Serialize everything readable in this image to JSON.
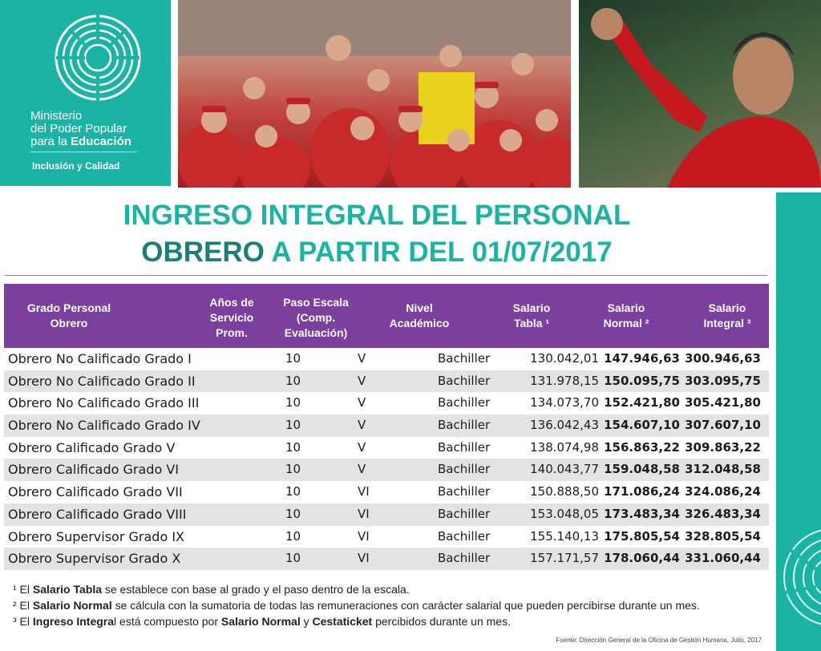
{
  "logo": {
    "line1": "Ministerio",
    "line2": "del Poder Popular",
    "line3_prefix": "para la ",
    "line3_bold": "Educación",
    "tagline": "Inclusión y Calidad",
    "icon": "concentric-circle-emblem-icon"
  },
  "colors": {
    "teal": "#1bb3a3",
    "purple_header": "#7b3f9e",
    "dark_teal": "#1b7f75",
    "row_stripe": "#e3e3e3"
  },
  "title": {
    "line1": "INGRESO INTEGRAL DEL PERSONAL",
    "line2_highlight": "OBRERO",
    "line2_rest": " A PARTIR DEL 01/07/2017"
  },
  "table": {
    "headers": {
      "grado": "Grado Personal\nObrero",
      "anos": "Años de\nServicio\nProm.",
      "paso": "Paso Escala\n(Comp.\nEvaluación)",
      "nivel": "Nivel\nAcadémico",
      "tabla": "Salario\nTabla ¹",
      "normal": "Salario\nNormal ²",
      "integral": "Salario\nIntegral ³"
    },
    "rows": [
      {
        "grado": "Obrero No Calificado Grado I",
        "anos": "10",
        "paso": "V",
        "nivel": "Bachiller",
        "tabla": "130.042,01",
        "normal": "147.946,63",
        "integral": "300.946,63"
      },
      {
        "grado": "Obrero No Calificado Grado II",
        "anos": "10",
        "paso": "V",
        "nivel": "Bachiller",
        "tabla": "131.978,15",
        "normal": "150.095,75",
        "integral": "303.095,75"
      },
      {
        "grado": "Obrero No Calificado Grado III",
        "anos": "10",
        "paso": "V",
        "nivel": "Bachiller",
        "tabla": "134.073,70",
        "normal": "152.421,80",
        "integral": "305.421,80"
      },
      {
        "grado": "Obrero No Calificado Grado IV",
        "anos": "10",
        "paso": "V",
        "nivel": "Bachiller",
        "tabla": "136.042,43",
        "normal": "154.607,10",
        "integral": "307.607,10"
      },
      {
        "grado": "Obrero Calificado Grado V",
        "anos": "10",
        "paso": "V",
        "nivel": "Bachiller",
        "tabla": "138.074,98",
        "normal": "156.863,22",
        "integral": "309.863,22"
      },
      {
        "grado": "Obrero Calificado Grado VI",
        "anos": "10",
        "paso": "V",
        "nivel": "Bachiller",
        "tabla": "140.043,77",
        "normal": "159.048,58",
        "integral": "312.048,58"
      },
      {
        "grado": "Obrero Calificado Grado VII",
        "anos": "10",
        "paso": "VI",
        "nivel": "Bachiller",
        "tabla": "150.888,50",
        "normal": "171.086,24",
        "integral": "324.086,24"
      },
      {
        "grado": "Obrero Calificado Grado VIII",
        "anos": "10",
        "paso": "VI",
        "nivel": "Bachiller",
        "tabla": "153.048,05",
        "normal": "173.483,34",
        "integral": "326.483,34"
      },
      {
        "grado": "Obrero Supervisor Grado IX",
        "anos": "10",
        "paso": "VI",
        "nivel": "Bachiller",
        "tabla": "155.140,13",
        "normal": "175.805,54",
        "integral": "328.805,54"
      },
      {
        "grado": "Obrero Supervisor Grado X",
        "anos": "10",
        "paso": "VI",
        "nivel": "Bachiller",
        "tabla": "157.171,57",
        "normal": "178.060,44",
        "integral": "331.060,44"
      }
    ]
  },
  "notes": {
    "n1": {
      "mark": "¹ El ",
      "bold": "Salario Tabla",
      "rest": " se establece con base al grado y el paso dentro de la escala."
    },
    "n2": {
      "mark": "² El ",
      "bold": "Salario Normal",
      "rest": " se cálcula con la sumatoria de todas las remuneraciones con carácter salarial que pueden percibirse durante un mes."
    },
    "n3": {
      "mark": "³ El ",
      "bold": "Ingreso Integra",
      "mid": "l está compuesto por ",
      "bold2": "Salario Normal",
      "mid2": " y ",
      "bold3": "Cestaticket",
      "rest": " percibidos durante un mes."
    }
  },
  "source": "Fuente: Dirección General de la Oficina de Gestión Humana, Julio, 2017"
}
